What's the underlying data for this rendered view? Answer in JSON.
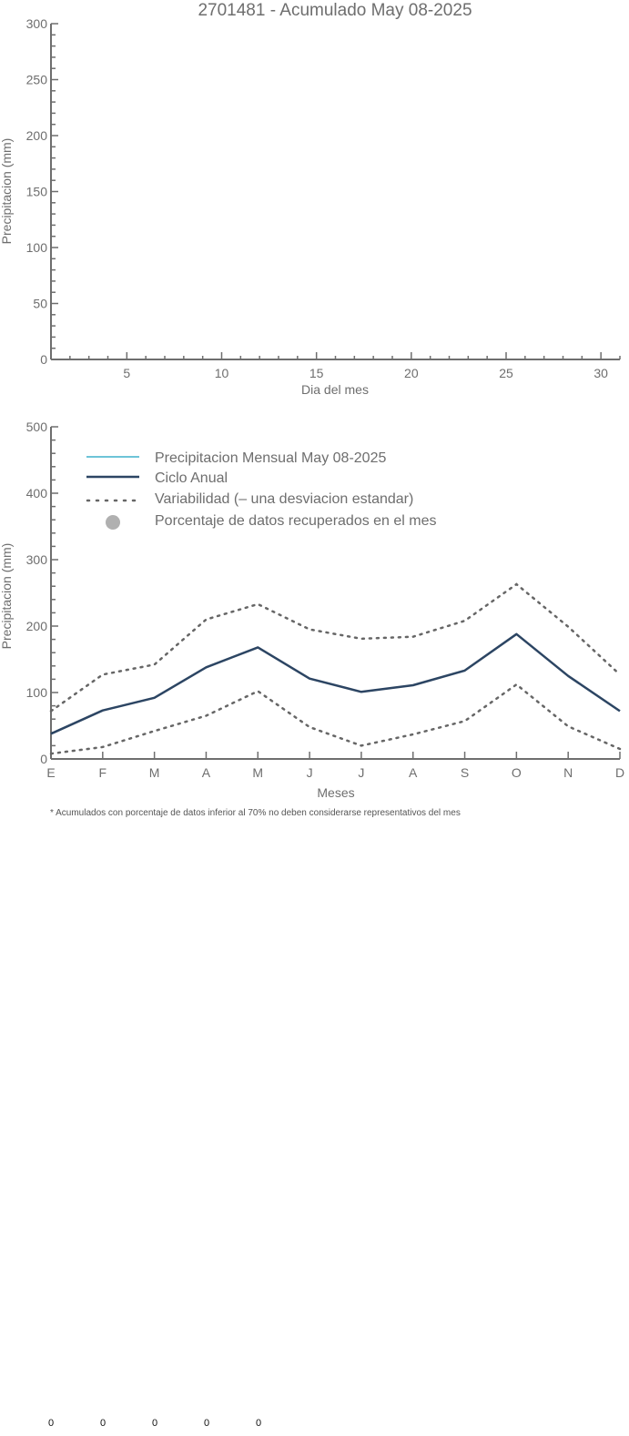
{
  "chart_data": [
    {
      "type": "line",
      "title": "2701481 - Acumulado May 08-2025",
      "xlabel": "Dia del mes",
      "ylabel": "Precipitacion (mm)",
      "xlim": [
        1,
        31
      ],
      "ylim": [
        0,
        300
      ],
      "x_ticks": [
        5,
        10,
        15,
        20,
        25,
        30
      ],
      "y_ticks": [
        0,
        50,
        100,
        150,
        200,
        250,
        300
      ],
      "series": []
    },
    {
      "type": "line",
      "xlabel": "Meses",
      "ylabel": "Precipitacion (mm)",
      "ylim": [
        0,
        500
      ],
      "y_ticks": [
        0,
        100,
        200,
        300,
        400,
        500
      ],
      "categories": [
        "E",
        "F",
        "M",
        "A",
        "M",
        "J",
        "J",
        "A",
        "S",
        "O",
        "N",
        "D"
      ],
      "legend_position": "top-left",
      "legend": [
        {
          "label": "Precipitacion Mensual May 08-2025",
          "style": "line",
          "color": "#3fb1cc"
        },
        {
          "label": "Ciclo Anual",
          "style": "line",
          "color": "#2c4563"
        },
        {
          "label": "Variabilidad (– una desviacion estandar)",
          "style": "dotted",
          "color": "#666666"
        },
        {
          "label": "Porcentaje de datos recuperados en el mes",
          "style": "dot",
          "color": "#b0b0b0"
        }
      ],
      "series": [
        {
          "name": "Ciclo Anual",
          "style": "solid",
          "color": "#2c4563",
          "values": [
            38,
            73,
            92,
            138,
            168,
            121,
            101,
            111,
            133,
            188,
            125,
            72
          ]
        },
        {
          "style": "dotted",
          "color": "#666666",
          "values": [
            72,
            127,
            142,
            210,
            233,
            195,
            181,
            184,
            208,
            263,
            199,
            127
          ]
        },
        {
          "style": "dotted",
          "color": "#666666",
          "values": [
            8,
            18,
            42,
            65,
            102,
            48,
            20,
            37,
            57,
            112,
            49,
            15
          ]
        }
      ],
      "footnote": "* Acumulados con porcentaje de datos inferior al 70% no deben considerarse representativos del mes"
    }
  ],
  "bottom_values": [
    "0",
    "0",
    "0",
    "0",
    "0"
  ],
  "colors": {
    "axis": "#6e6e6e",
    "text": "#6e6e6e",
    "cycle": "#2c4563",
    "variability": "#666666",
    "monthly": "#3fb1cc",
    "recovered": "#b0b0b0"
  }
}
